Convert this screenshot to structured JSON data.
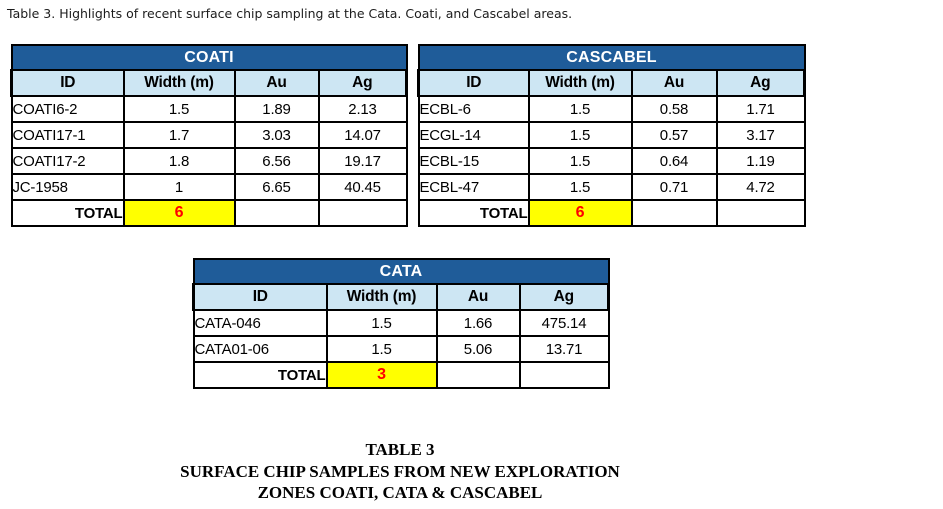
{
  "heading": "Table 3. Highlights of recent surface chip sampling at the Cata. Coati, and Cascabel areas.",
  "colors": {
    "title_bg": "#1F5C99",
    "header_bg": "#CDE6F3",
    "total_bg": "#FFFF00",
    "total_text": "#FF0000",
    "border": "#000000"
  },
  "columns": [
    "ID",
    "Width (m)",
    "Au",
    "Ag"
  ],
  "tables": [
    {
      "name": "COATI",
      "rows": [
        [
          "COATI6-2",
          "1.5",
          "1.89",
          "2.13"
        ],
        [
          "COATI17-1",
          "1.7",
          "3.03",
          "14.07"
        ],
        [
          "COATI17-2",
          "1.8",
          "6.56",
          "19.17"
        ],
        [
          "JC-1958",
          "1",
          "6.65",
          "40.45"
        ]
      ],
      "total_label": "TOTAL",
      "total_value": "6"
    },
    {
      "name": "CASCABEL",
      "rows": [
        [
          "ECBL-6",
          "1.5",
          "0.58",
          "1.71"
        ],
        [
          "ECGL-14",
          "1.5",
          "0.57",
          "3.17"
        ],
        [
          "ECBL-15",
          "1.5",
          "0.64",
          "1.19"
        ],
        [
          "ECBL-47",
          "1.5",
          "0.71",
          "4.72"
        ]
      ],
      "total_label": "TOTAL",
      "total_value": "6"
    },
    {
      "name": "CATA",
      "rows": [
        [
          "CATA-046",
          "1.5",
          "1.66",
          "475.14"
        ],
        [
          "CATA01-06",
          "1.5",
          "5.06",
          "13.71"
        ]
      ],
      "total_label": "TOTAL",
      "total_value": "3"
    }
  ],
  "caption": {
    "line1": "TABLE 3",
    "line2": "SURFACE CHIP SAMPLES FROM NEW EXPLORATION",
    "line3": "ZONES COATI, CATA & CASCABEL"
  }
}
